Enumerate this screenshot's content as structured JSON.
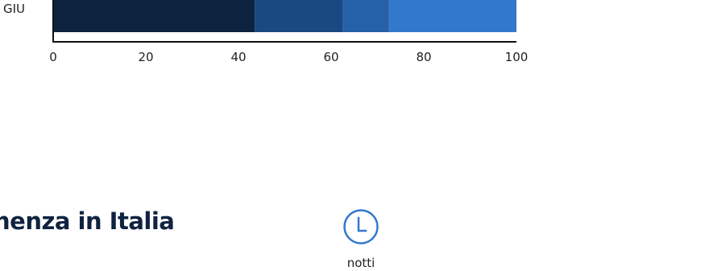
{
  "chart_data": {
    "type": "bar",
    "orientation": "horizontal",
    "stacked": true,
    "categories": [
      "GIU"
    ],
    "segments": [
      {
        "values": [
          43.5
        ],
        "color": "#0d2340"
      },
      {
        "values": [
          19
        ],
        "color": "#1a4880"
      },
      {
        "values": [
          10
        ],
        "color": "#2660a8"
      },
      {
        "values": [
          27.5
        ],
        "color": "#3279cc"
      }
    ],
    "xlim": [
      0,
      100
    ],
    "xticks": [
      "0",
      "20",
      "40",
      "60",
      "80",
      "100"
    ],
    "grid": false
  },
  "section": {
    "title": "nenza in Italia",
    "icon": "clock-icon",
    "icon_label": "notti",
    "accent": "#3279cc"
  }
}
